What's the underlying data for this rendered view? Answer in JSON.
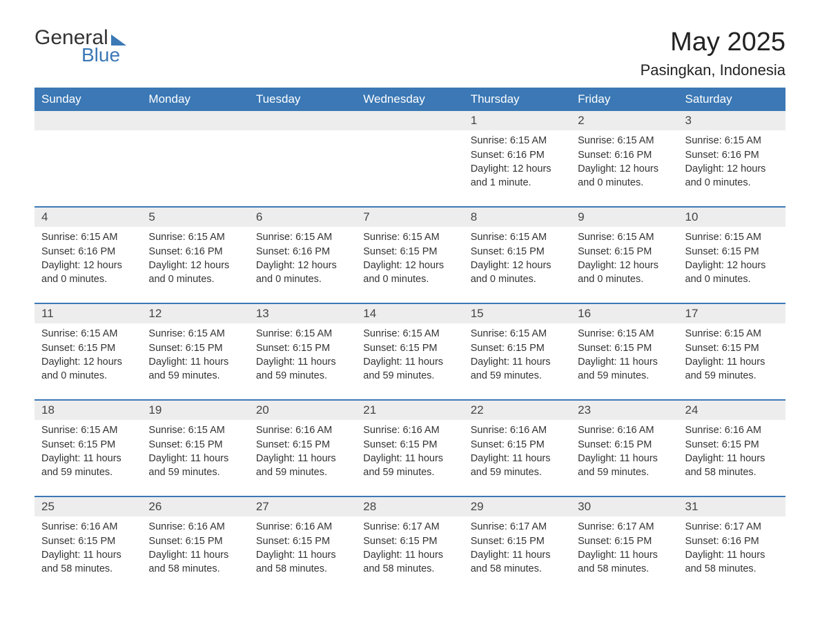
{
  "logo": {
    "general": "General",
    "blue": "Blue"
  },
  "title": "May 2025",
  "location": "Pasingkan, Indonesia",
  "colors": {
    "header_bg": "#3b78b5",
    "daynum_bg": "#ededed",
    "text": "#333333",
    "title_text": "#222222",
    "logo_blue": "#3b78b5"
  },
  "weekday_labels": [
    "Sunday",
    "Monday",
    "Tuesday",
    "Wednesday",
    "Thursday",
    "Friday",
    "Saturday"
  ],
  "weeks": [
    [
      null,
      null,
      null,
      null,
      {
        "n": "1",
        "sunrise": "6:15 AM",
        "sunset": "6:16 PM",
        "daylight": "12 hours and 1 minute."
      },
      {
        "n": "2",
        "sunrise": "6:15 AM",
        "sunset": "6:16 PM",
        "daylight": "12 hours and 0 minutes."
      },
      {
        "n": "3",
        "sunrise": "6:15 AM",
        "sunset": "6:16 PM",
        "daylight": "12 hours and 0 minutes."
      }
    ],
    [
      {
        "n": "4",
        "sunrise": "6:15 AM",
        "sunset": "6:16 PM",
        "daylight": "12 hours and 0 minutes."
      },
      {
        "n": "5",
        "sunrise": "6:15 AM",
        "sunset": "6:16 PM",
        "daylight": "12 hours and 0 minutes."
      },
      {
        "n": "6",
        "sunrise": "6:15 AM",
        "sunset": "6:16 PM",
        "daylight": "12 hours and 0 minutes."
      },
      {
        "n": "7",
        "sunrise": "6:15 AM",
        "sunset": "6:15 PM",
        "daylight": "12 hours and 0 minutes."
      },
      {
        "n": "8",
        "sunrise": "6:15 AM",
        "sunset": "6:15 PM",
        "daylight": "12 hours and 0 minutes."
      },
      {
        "n": "9",
        "sunrise": "6:15 AM",
        "sunset": "6:15 PM",
        "daylight": "12 hours and 0 minutes."
      },
      {
        "n": "10",
        "sunrise": "6:15 AM",
        "sunset": "6:15 PM",
        "daylight": "12 hours and 0 minutes."
      }
    ],
    [
      {
        "n": "11",
        "sunrise": "6:15 AM",
        "sunset": "6:15 PM",
        "daylight": "12 hours and 0 minutes."
      },
      {
        "n": "12",
        "sunrise": "6:15 AM",
        "sunset": "6:15 PM",
        "daylight": "11 hours and 59 minutes."
      },
      {
        "n": "13",
        "sunrise": "6:15 AM",
        "sunset": "6:15 PM",
        "daylight": "11 hours and 59 minutes."
      },
      {
        "n": "14",
        "sunrise": "6:15 AM",
        "sunset": "6:15 PM",
        "daylight": "11 hours and 59 minutes."
      },
      {
        "n": "15",
        "sunrise": "6:15 AM",
        "sunset": "6:15 PM",
        "daylight": "11 hours and 59 minutes."
      },
      {
        "n": "16",
        "sunrise": "6:15 AM",
        "sunset": "6:15 PM",
        "daylight": "11 hours and 59 minutes."
      },
      {
        "n": "17",
        "sunrise": "6:15 AM",
        "sunset": "6:15 PM",
        "daylight": "11 hours and 59 minutes."
      }
    ],
    [
      {
        "n": "18",
        "sunrise": "6:15 AM",
        "sunset": "6:15 PM",
        "daylight": "11 hours and 59 minutes."
      },
      {
        "n": "19",
        "sunrise": "6:15 AM",
        "sunset": "6:15 PM",
        "daylight": "11 hours and 59 minutes."
      },
      {
        "n": "20",
        "sunrise": "6:16 AM",
        "sunset": "6:15 PM",
        "daylight": "11 hours and 59 minutes."
      },
      {
        "n": "21",
        "sunrise": "6:16 AM",
        "sunset": "6:15 PM",
        "daylight": "11 hours and 59 minutes."
      },
      {
        "n": "22",
        "sunrise": "6:16 AM",
        "sunset": "6:15 PM",
        "daylight": "11 hours and 59 minutes."
      },
      {
        "n": "23",
        "sunrise": "6:16 AM",
        "sunset": "6:15 PM",
        "daylight": "11 hours and 59 minutes."
      },
      {
        "n": "24",
        "sunrise": "6:16 AM",
        "sunset": "6:15 PM",
        "daylight": "11 hours and 58 minutes."
      }
    ],
    [
      {
        "n": "25",
        "sunrise": "6:16 AM",
        "sunset": "6:15 PM",
        "daylight": "11 hours and 58 minutes."
      },
      {
        "n": "26",
        "sunrise": "6:16 AM",
        "sunset": "6:15 PM",
        "daylight": "11 hours and 58 minutes."
      },
      {
        "n": "27",
        "sunrise": "6:16 AM",
        "sunset": "6:15 PM",
        "daylight": "11 hours and 58 minutes."
      },
      {
        "n": "28",
        "sunrise": "6:17 AM",
        "sunset": "6:15 PM",
        "daylight": "11 hours and 58 minutes."
      },
      {
        "n": "29",
        "sunrise": "6:17 AM",
        "sunset": "6:15 PM",
        "daylight": "11 hours and 58 minutes."
      },
      {
        "n": "30",
        "sunrise": "6:17 AM",
        "sunset": "6:15 PM",
        "daylight": "11 hours and 58 minutes."
      },
      {
        "n": "31",
        "sunrise": "6:17 AM",
        "sunset": "6:16 PM",
        "daylight": "11 hours and 58 minutes."
      }
    ]
  ],
  "labels": {
    "sunrise": "Sunrise:",
    "sunset": "Sunset:",
    "daylight": "Daylight:"
  }
}
